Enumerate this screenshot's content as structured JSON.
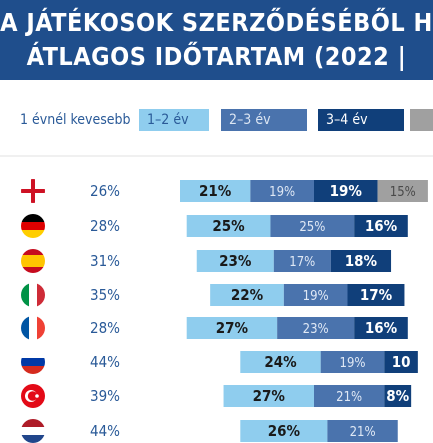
{
  "header": {
    "title_line1": "A JÁTÉKOSOK SZERZŐDÉSÉBŐL H",
    "title_line2": "ÁTLAGOS IDŐTARTAM (2022 |"
  },
  "colors": {
    "banner": "#1f4e8c",
    "band_1": "#cfe8f6",
    "band_2": "#8fcdee",
    "band_3": "#4a73ad",
    "band_4": "#103f7a",
    "band_5": "#a0a0a0"
  },
  "chart_data": {
    "type": "bar",
    "orientation": "horizontal-stacked",
    "legend": {
      "placement": "top",
      "entries": [
        "1 évnél kevesebb",
        "1–2 év",
        "2–3 év",
        "3–4 év",
        ""
      ]
    },
    "categories": [
      "England",
      "Germany",
      "Spain",
      "Italy",
      "France",
      "Russia",
      "Turkey",
      "Netherlands"
    ],
    "flags": [
      "england-flag-icon",
      "germany-flag-icon",
      "spain-flag-icon",
      "italy-flag-icon",
      "france-flag-icon",
      "russia-flag-icon",
      "turkey-flag-icon",
      "netherlands-flag-icon"
    ],
    "series": [
      {
        "name": "1 évnél kevesebb",
        "values": [
          26,
          28,
          31,
          35,
          28,
          44,
          39,
          44
        ],
        "labels": [
          "26%",
          "28%",
          "31%",
          "35%",
          "28%",
          "44%",
          "39%",
          "44%"
        ]
      },
      {
        "name": "1–2 év",
        "values": [
          21,
          25,
          23,
          22,
          27,
          24,
          27,
          26
        ],
        "labels": [
          "21%",
          "25%",
          "23%",
          "22%",
          "27%",
          "24%",
          "27%",
          "26%"
        ]
      },
      {
        "name": "2–3 év",
        "values": [
          19,
          25,
          17,
          19,
          23,
          19,
          21,
          21
        ],
        "labels": [
          "19%",
          "25%",
          "17%",
          "19%",
          "23%",
          "19%",
          "21%",
          "21%"
        ]
      },
      {
        "name": "3–4 év",
        "values": [
          19,
          16,
          18,
          17,
          16,
          10,
          8,
          null
        ],
        "labels": [
          "19%",
          "16%",
          "18%",
          "17%",
          "16%",
          "10",
          "8%",
          ""
        ]
      },
      {
        "name": "",
        "values": [
          15,
          null,
          null,
          null,
          null,
          null,
          null,
          null
        ],
        "labels": [
          "15%",
          "",
          "",
          "",
          "",
          "",
          "",
          ""
        ]
      }
    ],
    "x_unit": "%",
    "xlim": [
      0,
      100
    ],
    "grid": false
  }
}
